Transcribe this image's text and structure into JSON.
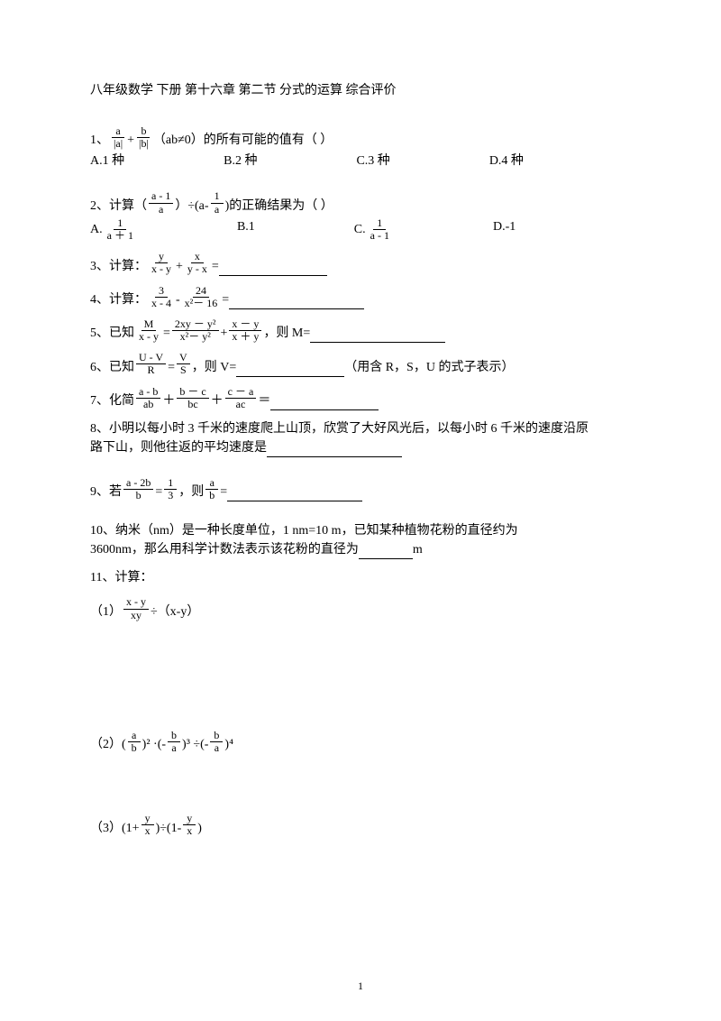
{
  "title": "八年级数学 下册 第十六章   第二节   分式的运算   综合评价",
  "q1": {
    "frac1_num": "a",
    "frac1_den": "|a|",
    "frac2_num": "b",
    "frac2_den": "|b|",
    "prefix": "1、",
    "plus": "+",
    "cond": " （ab≠0）的所有可能的值有（     ）",
    "optA": "A.1 种",
    "optB": "B.2 种",
    "optC": "C.3 种",
    "optD": "D.4 种"
  },
  "q2": {
    "prefix": "2、计算（",
    "f1_num": "a - 1",
    "f1_den": "a",
    "mid": "）÷(a-",
    "f2_num": "1",
    "f2_den": "a",
    "tail": ")的正确结果为（    ）",
    "optA_pre": "A.",
    "optA_num": "1",
    "optA_den": "a ＋ 1",
    "optB": "B.1",
    "optC_pre": "C.",
    "optC_num": "1",
    "optC_den": "a - 1",
    "optD": "D.-1"
  },
  "q3": {
    "prefix": "3、计算：",
    "f1_num": "y",
    "f1_den": "x - y",
    "plus": "+",
    "f2_num": "x",
    "f2_den": "y - x",
    "eq": "="
  },
  "q4": {
    "prefix": "4、计算：",
    "f1_num": "3",
    "f1_den": "x - 4",
    "minus": "-",
    "f2_num": "24",
    "f2_den": "x²－ 16",
    "eq": "="
  },
  "q5": {
    "prefix": "5、已知",
    "f1_num": "M",
    "f1_den": "x - y",
    "eq1": "=",
    "f2_num": "2xy － y²",
    "f2_den": "x²－ y²",
    "plus": "+",
    "f3_num": "x － y",
    "f3_den": "x ＋ y",
    "tail": "，则 M="
  },
  "q6": {
    "prefix": "6、已知",
    "f1_num": "U - V",
    "f1_den": "R",
    "eq": "=",
    "f2_num": "V",
    "f2_den": "S",
    "tail1": "，则 V=",
    "tail2": "（用含 R，S，U 的式子表示）"
  },
  "q7": {
    "prefix": "7、化简",
    "f1_num": "a - b",
    "f1_den": "ab",
    "p1": "＋",
    "f2_num": "b － c",
    "f2_den": "bc",
    "p2": "＋",
    "f3_num": "c － a",
    "f3_den": "ac",
    "eq": "＝"
  },
  "q8": {
    "line1": "8、小明以每小时 3 千米的速度爬上山顶，欣赏了大好风光后，以每小时 6 千米的速度沿原",
    "line2": "路下山，则他往返的平均速度是"
  },
  "q9": {
    "prefix": "9、若",
    "f1_num": "a - 2b",
    "f1_den": "b",
    "eq1": "=",
    "f2_num": "1",
    "f2_den": "3",
    "mid": "，则",
    "f3_num": "a",
    "f3_den": "b",
    "eq2": "="
  },
  "q10": {
    "line1a": "10、纳米（nm）是一种长度单位，1      nm=10      m，已知某种植物花粉的直径约为",
    "line2a": "3600nm，那么用科学计数法表示该花粉的直径为",
    "line2b": "m"
  },
  "q11": {
    "header": "11、计算：",
    "s1_pre": "（1）",
    "s1_f_num": "x - y",
    "s1_f_den": "xy",
    "s1_tail": "÷（x-y）",
    "s2_pre": "（2）(",
    "s2_f1_num": "a",
    "s2_f1_den": "b",
    "s2_p1": ")²    ·(-",
    "s2_f2_num": "b",
    "s2_f2_den": "a",
    "s2_p2": ")³    ÷(-",
    "s2_f3_num": "b",
    "s2_f3_den": "a",
    "s2_p3": ")⁴",
    "s3_pre": "（3）(1+",
    "s3_f1_num": "y",
    "s3_f1_den": "x",
    "s3_mid": ")÷(1-",
    "s3_f2_num": "y",
    "s3_f2_den": "x",
    "s3_tail": ")"
  },
  "pageNum": "1"
}
